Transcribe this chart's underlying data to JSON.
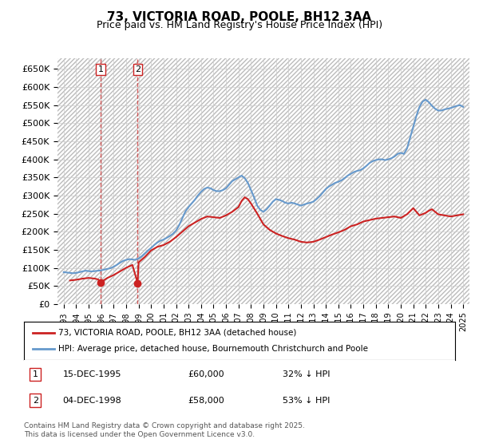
{
  "title": "73, VICTORIA ROAD, POOLE, BH12 3AA",
  "subtitle": "Price paid vs. HM Land Registry's House Price Index (HPI)",
  "ylabel_ticks": [
    "£0",
    "£50K",
    "£100K",
    "£150K",
    "£200K",
    "£250K",
    "£300K",
    "£350K",
    "£400K",
    "£450K",
    "£500K",
    "£550K",
    "£600K",
    "£650K"
  ],
  "ytick_values": [
    0,
    50000,
    100000,
    150000,
    200000,
    250000,
    300000,
    350000,
    400000,
    450000,
    500000,
    550000,
    600000,
    650000
  ],
  "ylim": [
    0,
    680000
  ],
  "background_color": "#ffffff",
  "grid_color": "#cccccc",
  "hpi_color": "#6699cc",
  "price_color": "#cc2222",
  "annotation_box_color": "#cc2222",
  "vline_color": "#cc2222",
  "transactions": [
    {
      "label": "1",
      "date": "15-DEC-1995",
      "price": 60000,
      "pct": "32%",
      "dir": "↓",
      "year_x": 1995.96
    },
    {
      "label": "2",
      "date": "04-DEC-1998",
      "price": 58000,
      "pct": "53%",
      "dir": "↓",
      "year_x": 1998.92
    }
  ],
  "legend_price_label": "73, VICTORIA ROAD, POOLE, BH12 3AA (detached house)",
  "legend_hpi_label": "HPI: Average price, detached house, Bournemouth Christchurch and Poole",
  "footer": "Contains HM Land Registry data © Crown copyright and database right 2025.\nThis data is licensed under the Open Government Licence v3.0.",
  "hpi_data": {
    "years": [
      1993.0,
      1993.25,
      1993.5,
      1993.75,
      1994.0,
      1994.25,
      1994.5,
      1994.75,
      1995.0,
      1995.25,
      1995.5,
      1995.75,
      1996.0,
      1996.25,
      1996.5,
      1996.75,
      1997.0,
      1997.25,
      1997.5,
      1997.75,
      1998.0,
      1998.25,
      1998.5,
      1998.75,
      1999.0,
      1999.25,
      1999.5,
      1999.75,
      2000.0,
      2000.25,
      2000.5,
      2000.75,
      2001.0,
      2001.25,
      2001.5,
      2001.75,
      2002.0,
      2002.25,
      2002.5,
      2002.75,
      2003.0,
      2003.25,
      2003.5,
      2003.75,
      2004.0,
      2004.25,
      2004.5,
      2004.75,
      2005.0,
      2005.25,
      2005.5,
      2005.75,
      2006.0,
      2006.25,
      2006.5,
      2006.75,
      2007.0,
      2007.25,
      2007.5,
      2007.75,
      2008.0,
      2008.25,
      2008.5,
      2008.75,
      2009.0,
      2009.25,
      2009.5,
      2009.75,
      2010.0,
      2010.25,
      2010.5,
      2010.75,
      2011.0,
      2011.25,
      2011.5,
      2011.75,
      2012.0,
      2012.25,
      2012.5,
      2012.75,
      2013.0,
      2013.25,
      2013.5,
      2013.75,
      2014.0,
      2014.25,
      2014.5,
      2014.75,
      2015.0,
      2015.25,
      2015.5,
      2015.75,
      2016.0,
      2016.25,
      2016.5,
      2016.75,
      2017.0,
      2017.25,
      2017.5,
      2017.75,
      2018.0,
      2018.25,
      2018.5,
      2018.75,
      2019.0,
      2019.25,
      2019.5,
      2019.75,
      2020.0,
      2020.25,
      2020.5,
      2020.75,
      2021.0,
      2021.25,
      2021.5,
      2021.75,
      2022.0,
      2022.25,
      2022.5,
      2022.75,
      2023.0,
      2023.25,
      2023.5,
      2023.75,
      2024.0,
      2024.25,
      2024.5,
      2024.75,
      2025.0
    ],
    "values": [
      88000,
      87000,
      86000,
      85000,
      86000,
      88000,
      90000,
      92000,
      91000,
      90000,
      91000,
      92000,
      93000,
      95000,
      97000,
      99000,
      103000,
      108000,
      114000,
      119000,
      122000,
      124000,
      123000,
      122000,
      126000,
      132000,
      140000,
      148000,
      155000,
      163000,
      170000,
      175000,
      178000,
      183000,
      188000,
      194000,
      203000,
      218000,
      237000,
      256000,
      268000,
      278000,
      288000,
      300000,
      310000,
      318000,
      322000,
      320000,
      315000,
      312000,
      312000,
      315000,
      320000,
      330000,
      340000,
      345000,
      350000,
      355000,
      348000,
      335000,
      315000,
      295000,
      272000,
      260000,
      255000,
      262000,
      272000,
      283000,
      290000,
      288000,
      285000,
      280000,
      278000,
      280000,
      278000,
      275000,
      272000,
      275000,
      278000,
      280000,
      283000,
      290000,
      298000,
      308000,
      318000,
      325000,
      330000,
      335000,
      338000,
      342000,
      348000,
      355000,
      360000,
      365000,
      368000,
      370000,
      375000,
      382000,
      390000,
      395000,
      398000,
      400000,
      400000,
      398000,
      400000,
      403000,
      408000,
      415000,
      418000,
      415000,
      430000,
      460000,
      490000,
      520000,
      545000,
      560000,
      565000,
      558000,
      548000,
      540000,
      535000,
      535000,
      538000,
      540000,
      542000,
      545000,
      548000,
      550000,
      545000
    ]
  },
  "price_data": {
    "years": [
      1993.5,
      1994.0,
      1994.5,
      1995.0,
      1995.5,
      1995.75,
      1995.96,
      1996.5,
      1997.0,
      1997.5,
      1997.75,
      1998.0,
      1998.5,
      1998.92,
      1999.0,
      1999.5,
      2000.0,
      2000.5,
      2001.0,
      2001.5,
      2002.0,
      2002.5,
      2003.0,
      2003.5,
      2004.0,
      2004.5,
      2005.0,
      2005.5,
      2006.0,
      2006.5,
      2007.0,
      2007.25,
      2007.5,
      2007.75,
      2008.0,
      2008.5,
      2009.0,
      2009.5,
      2010.0,
      2010.5,
      2011.0,
      2011.5,
      2012.0,
      2012.5,
      2013.0,
      2013.5,
      2014.0,
      2014.5,
      2015.0,
      2015.5,
      2016.0,
      2016.5,
      2017.0,
      2017.5,
      2018.0,
      2018.5,
      2019.0,
      2019.5,
      2020.0,
      2020.5,
      2021.0,
      2021.5,
      2022.0,
      2022.25,
      2022.5,
      2022.75,
      2023.0,
      2023.5,
      2024.0,
      2024.5,
      2025.0
    ],
    "values": [
      65000,
      67000,
      70000,
      72000,
      70000,
      68000,
      60000,
      72000,
      80000,
      90000,
      95000,
      100000,
      108000,
      58000,
      115000,
      130000,
      148000,
      158000,
      163000,
      172000,
      185000,
      200000,
      215000,
      225000,
      235000,
      242000,
      240000,
      238000,
      245000,
      255000,
      268000,
      285000,
      295000,
      290000,
      278000,
      250000,
      220000,
      205000,
      195000,
      188000,
      182000,
      178000,
      172000,
      170000,
      172000,
      178000,
      185000,
      192000,
      198000,
      205000,
      215000,
      220000,
      228000,
      232000,
      236000,
      238000,
      240000,
      242000,
      238000,
      248000,
      265000,
      245000,
      252000,
      258000,
      262000,
      255000,
      248000,
      245000,
      242000,
      245000,
      248000
    ]
  },
  "xlim": [
    1992.5,
    2025.5
  ],
  "xtick_years": [
    1993,
    1994,
    1995,
    1996,
    1997,
    1998,
    1999,
    2000,
    2001,
    2002,
    2003,
    2004,
    2005,
    2006,
    2007,
    2008,
    2009,
    2010,
    2011,
    2012,
    2013,
    2014,
    2015,
    2016,
    2017,
    2018,
    2019,
    2020,
    2021,
    2022,
    2023,
    2024,
    2025
  ]
}
